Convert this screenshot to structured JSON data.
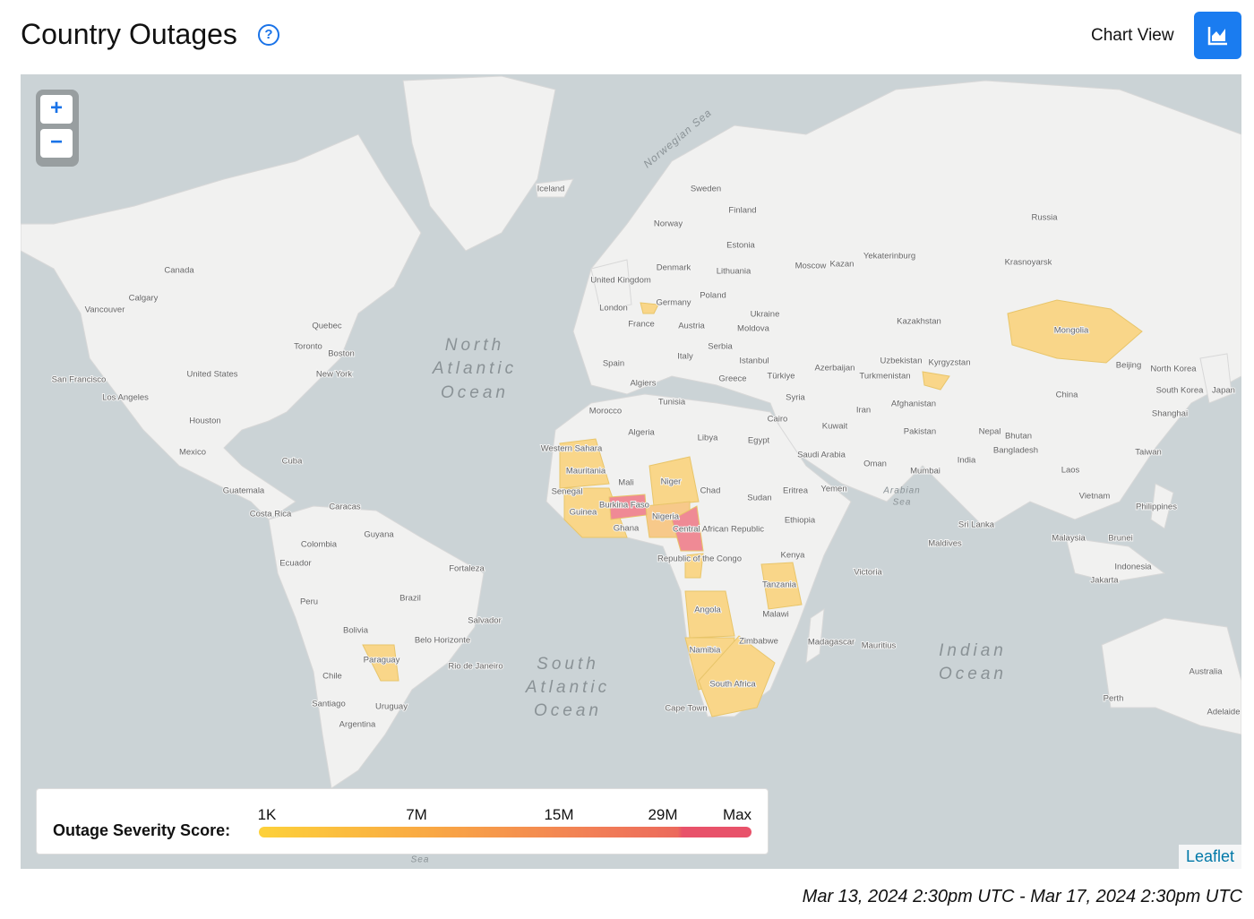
{
  "header": {
    "title": "Country Outages",
    "help_icon": "?",
    "view_toggle": "Chart View"
  },
  "zoom": {
    "in": "+",
    "out": "−"
  },
  "map": {
    "labels": [
      "Iceland",
      "Sweden",
      "Finland",
      "Norway",
      "Russia",
      "Estonia",
      "Denmark",
      "Lithuania",
      "Moscow",
      "Kazan",
      "Yekaterinburg",
      "Krasnoyarsk",
      "United Kingdom",
      "Germany",
      "Poland",
      "London",
      "Ukraine",
      "Kazakhstan",
      "Mongolia",
      "France",
      "Austria",
      "Moldova",
      "Serbia",
      "Spain",
      "Italy",
      "Istanbul",
      "Azerbaijan",
      "Uzbekistan",
      "Kyrgyzstan",
      "Beijing",
      "North Korea",
      "Turkmenistan",
      "Türkiye",
      "Greece",
      "Algiers",
      "Tunisia",
      "Syria",
      "South Korea",
      "Japan",
      "China",
      "Afghanistan",
      "Iran",
      "Shanghai",
      "Morocco",
      "Cairo",
      "Kuwait",
      "Pakistan",
      "Nepal",
      "Bhutan",
      "Algeria",
      "Libya",
      "Egypt",
      "Western Sahara",
      "Bangladesh",
      "Taiwan",
      "Saudi Arabia",
      "India",
      "Oman",
      "Mauritania",
      "Mumbai",
      "Laos",
      "Mali",
      "Niger",
      "Eritrea",
      "Yemen",
      "Chad",
      "Senegal",
      "Sudan",
      "Vietnam",
      "Burkina Faso",
      "Guinea",
      "Nigeria",
      "Ethiopia",
      "Central African Republic",
      "Philippines",
      "Ghana",
      "Sri Lanka",
      "Malaysia",
      "Brunei",
      "Maldives",
      "Kenya",
      "Republic of the Congo",
      "Indonesia",
      "Victoria",
      "Tanzania",
      "Jakarta",
      "Angola",
      "Malawi",
      "Zimbabwe",
      "Madagascar",
      "Mauritius",
      "Namibia",
      "Australia",
      "South Africa",
      "Perth",
      "Cape Town",
      "Adelaide",
      "Canada",
      "Calgary",
      "Vancouver",
      "Quebec",
      "Toronto",
      "Boston",
      "New York",
      "United States",
      "San Francisco",
      "Los Angeles",
      "Houston",
      "Mexico",
      "Cuba",
      "Guatemala",
      "Costa Rica",
      "Caracas",
      "Guyana",
      "Colombia",
      "Ecuador",
      "Fortaleza",
      "Peru",
      "Brazil",
      "Salvador",
      "Bolivia",
      "Belo Horizonte",
      "Paraguay",
      "Rio de Janeiro",
      "Chile",
      "Santiago",
      "Uruguay",
      "Argentina"
    ],
    "sea_labels": [
      "North",
      "Atlantic",
      "Ocean",
      "South",
      "Atlantic",
      "Ocean",
      "Indian",
      "Ocean",
      "Norwegian Sea",
      "Arabian",
      "Sea",
      "Sea"
    ]
  },
  "legend": {
    "title": "Outage Severity Score:",
    "stops": [
      "1K",
      "7M",
      "15M",
      "29M",
      "Max"
    ]
  },
  "attribution": "Leaflet",
  "time_range": "Mar 13, 2024 2:30pm UTC - Mar 17, 2024 2:30pm UTC"
}
